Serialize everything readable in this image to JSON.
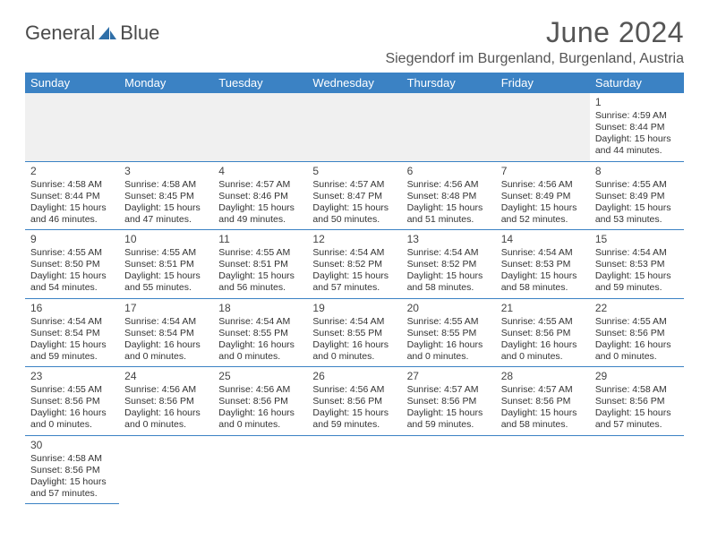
{
  "logo": {
    "part1": "General",
    "part2": "Blue"
  },
  "title": "June 2024",
  "location": "Siegendorf im Burgenland, Burgenland, Austria",
  "colors": {
    "header_bg": "#3b82c4",
    "header_fg": "#ffffff",
    "row_border": "#3b82c4",
    "empty_bg": "#f0f0f0",
    "text": "#333333",
    "title_color": "#555555"
  },
  "weekdays": [
    "Sunday",
    "Monday",
    "Tuesday",
    "Wednesday",
    "Thursday",
    "Friday",
    "Saturday"
  ],
  "weeks": [
    [
      null,
      null,
      null,
      null,
      null,
      null,
      {
        "n": "1",
        "sr": "Sunrise: 4:59 AM",
        "ss": "Sunset: 8:44 PM",
        "dl1": "Daylight: 15 hours",
        "dl2": "and 44 minutes."
      }
    ],
    [
      {
        "n": "2",
        "sr": "Sunrise: 4:58 AM",
        "ss": "Sunset: 8:44 PM",
        "dl1": "Daylight: 15 hours",
        "dl2": "and 46 minutes."
      },
      {
        "n": "3",
        "sr": "Sunrise: 4:58 AM",
        "ss": "Sunset: 8:45 PM",
        "dl1": "Daylight: 15 hours",
        "dl2": "and 47 minutes."
      },
      {
        "n": "4",
        "sr": "Sunrise: 4:57 AM",
        "ss": "Sunset: 8:46 PM",
        "dl1": "Daylight: 15 hours",
        "dl2": "and 49 minutes."
      },
      {
        "n": "5",
        "sr": "Sunrise: 4:57 AM",
        "ss": "Sunset: 8:47 PM",
        "dl1": "Daylight: 15 hours",
        "dl2": "and 50 minutes."
      },
      {
        "n": "6",
        "sr": "Sunrise: 4:56 AM",
        "ss": "Sunset: 8:48 PM",
        "dl1": "Daylight: 15 hours",
        "dl2": "and 51 minutes."
      },
      {
        "n": "7",
        "sr": "Sunrise: 4:56 AM",
        "ss": "Sunset: 8:49 PM",
        "dl1": "Daylight: 15 hours",
        "dl2": "and 52 minutes."
      },
      {
        "n": "8",
        "sr": "Sunrise: 4:55 AM",
        "ss": "Sunset: 8:49 PM",
        "dl1": "Daylight: 15 hours",
        "dl2": "and 53 minutes."
      }
    ],
    [
      {
        "n": "9",
        "sr": "Sunrise: 4:55 AM",
        "ss": "Sunset: 8:50 PM",
        "dl1": "Daylight: 15 hours",
        "dl2": "and 54 minutes."
      },
      {
        "n": "10",
        "sr": "Sunrise: 4:55 AM",
        "ss": "Sunset: 8:51 PM",
        "dl1": "Daylight: 15 hours",
        "dl2": "and 55 minutes."
      },
      {
        "n": "11",
        "sr": "Sunrise: 4:55 AM",
        "ss": "Sunset: 8:51 PM",
        "dl1": "Daylight: 15 hours",
        "dl2": "and 56 minutes."
      },
      {
        "n": "12",
        "sr": "Sunrise: 4:54 AM",
        "ss": "Sunset: 8:52 PM",
        "dl1": "Daylight: 15 hours",
        "dl2": "and 57 minutes."
      },
      {
        "n": "13",
        "sr": "Sunrise: 4:54 AM",
        "ss": "Sunset: 8:52 PM",
        "dl1": "Daylight: 15 hours",
        "dl2": "and 58 minutes."
      },
      {
        "n": "14",
        "sr": "Sunrise: 4:54 AM",
        "ss": "Sunset: 8:53 PM",
        "dl1": "Daylight: 15 hours",
        "dl2": "and 58 minutes."
      },
      {
        "n": "15",
        "sr": "Sunrise: 4:54 AM",
        "ss": "Sunset: 8:53 PM",
        "dl1": "Daylight: 15 hours",
        "dl2": "and 59 minutes."
      }
    ],
    [
      {
        "n": "16",
        "sr": "Sunrise: 4:54 AM",
        "ss": "Sunset: 8:54 PM",
        "dl1": "Daylight: 15 hours",
        "dl2": "and 59 minutes."
      },
      {
        "n": "17",
        "sr": "Sunrise: 4:54 AM",
        "ss": "Sunset: 8:54 PM",
        "dl1": "Daylight: 16 hours",
        "dl2": "and 0 minutes."
      },
      {
        "n": "18",
        "sr": "Sunrise: 4:54 AM",
        "ss": "Sunset: 8:55 PM",
        "dl1": "Daylight: 16 hours",
        "dl2": "and 0 minutes."
      },
      {
        "n": "19",
        "sr": "Sunrise: 4:54 AM",
        "ss": "Sunset: 8:55 PM",
        "dl1": "Daylight: 16 hours",
        "dl2": "and 0 minutes."
      },
      {
        "n": "20",
        "sr": "Sunrise: 4:55 AM",
        "ss": "Sunset: 8:55 PM",
        "dl1": "Daylight: 16 hours",
        "dl2": "and 0 minutes."
      },
      {
        "n": "21",
        "sr": "Sunrise: 4:55 AM",
        "ss": "Sunset: 8:56 PM",
        "dl1": "Daylight: 16 hours",
        "dl2": "and 0 minutes."
      },
      {
        "n": "22",
        "sr": "Sunrise: 4:55 AM",
        "ss": "Sunset: 8:56 PM",
        "dl1": "Daylight: 16 hours",
        "dl2": "and 0 minutes."
      }
    ],
    [
      {
        "n": "23",
        "sr": "Sunrise: 4:55 AM",
        "ss": "Sunset: 8:56 PM",
        "dl1": "Daylight: 16 hours",
        "dl2": "and 0 minutes."
      },
      {
        "n": "24",
        "sr": "Sunrise: 4:56 AM",
        "ss": "Sunset: 8:56 PM",
        "dl1": "Daylight: 16 hours",
        "dl2": "and 0 minutes."
      },
      {
        "n": "25",
        "sr": "Sunrise: 4:56 AM",
        "ss": "Sunset: 8:56 PM",
        "dl1": "Daylight: 16 hours",
        "dl2": "and 0 minutes."
      },
      {
        "n": "26",
        "sr": "Sunrise: 4:56 AM",
        "ss": "Sunset: 8:56 PM",
        "dl1": "Daylight: 15 hours",
        "dl2": "and 59 minutes."
      },
      {
        "n": "27",
        "sr": "Sunrise: 4:57 AM",
        "ss": "Sunset: 8:56 PM",
        "dl1": "Daylight: 15 hours",
        "dl2": "and 59 minutes."
      },
      {
        "n": "28",
        "sr": "Sunrise: 4:57 AM",
        "ss": "Sunset: 8:56 PM",
        "dl1": "Daylight: 15 hours",
        "dl2": "and 58 minutes."
      },
      {
        "n": "29",
        "sr": "Sunrise: 4:58 AM",
        "ss": "Sunset: 8:56 PM",
        "dl1": "Daylight: 15 hours",
        "dl2": "and 57 minutes."
      }
    ],
    [
      {
        "n": "30",
        "sr": "Sunrise: 4:58 AM",
        "ss": "Sunset: 8:56 PM",
        "dl1": "Daylight: 15 hours",
        "dl2": "and 57 minutes."
      },
      null,
      null,
      null,
      null,
      null,
      null
    ]
  ]
}
